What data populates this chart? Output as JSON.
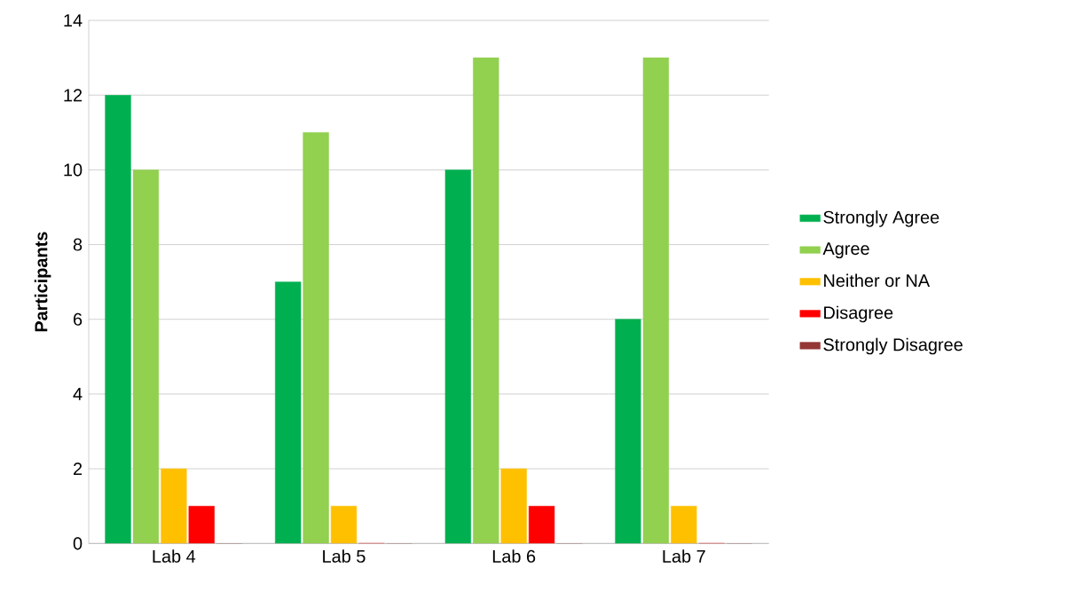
{
  "chart_data": {
    "type": "bar",
    "ylabel": "Participants",
    "categories": [
      "Lab 4",
      "Lab 5",
      "Lab 6",
      "Lab 7"
    ],
    "series": [
      {
        "name": "Strongly Agree",
        "color": "#00b050",
        "values": [
          12,
          7,
          10,
          6
        ]
      },
      {
        "name": "Agree",
        "color": "#92d050",
        "values": [
          10,
          11,
          13,
          13
        ]
      },
      {
        "name": "Neither or NA",
        "color": "#ffc000",
        "values": [
          2,
          1,
          2,
          1
        ]
      },
      {
        "name": "Disagree",
        "color": "#ff0000",
        "values": [
          1,
          0,
          1,
          0
        ]
      },
      {
        "name": "Strongly Disagree",
        "color": "#953735",
        "values": [
          0,
          0,
          0,
          0
        ]
      }
    ],
    "ylim": [
      0,
      14
    ],
    "yticks": [
      0,
      2,
      4,
      6,
      8,
      10,
      12,
      14
    ],
    "grid": "y",
    "legend": "right"
  }
}
